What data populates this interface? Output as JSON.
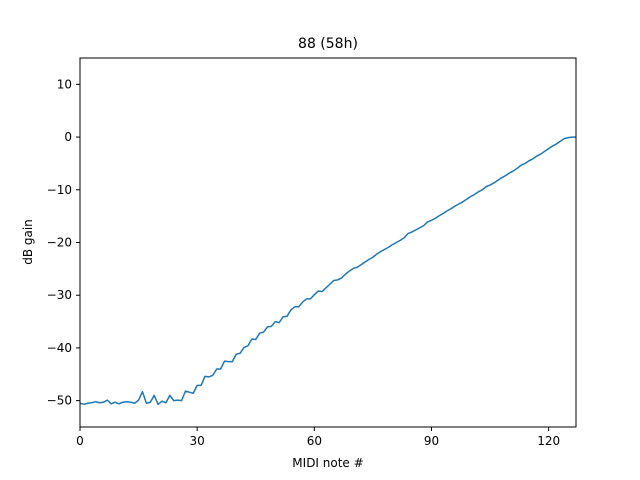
{
  "chart_data": {
    "type": "line",
    "title": "88 (58h)",
    "xlabel": "MIDI note #",
    "ylabel": "dB gain",
    "xlim": [
      0,
      127
    ],
    "ylim": [
      -55,
      15
    ],
    "xticks": [
      0,
      30,
      60,
      90,
      120
    ],
    "yticks": [
      10,
      0,
      -10,
      -20,
      -30,
      -40,
      -50
    ],
    "grid": false,
    "legend": "none",
    "colors": {
      "line": "#1f77b4",
      "axes": "#000000"
    },
    "series": [
      {
        "x": [
          0,
          1,
          2,
          3,
          4,
          5,
          6,
          7,
          8,
          9,
          10,
          11,
          12,
          13,
          14,
          15,
          16,
          17,
          18,
          19,
          20,
          21,
          22,
          23,
          24,
          25,
          26,
          27,
          28,
          29,
          30,
          31,
          32,
          33,
          34,
          35,
          36,
          37,
          38,
          39,
          40,
          41,
          42,
          43,
          44,
          45,
          46,
          47,
          48,
          49,
          50,
          51,
          52,
          53,
          54,
          55,
          56,
          57,
          58,
          59,
          60,
          61,
          62,
          63,
          64,
          65,
          66,
          67,
          68,
          69,
          70,
          71,
          72,
          73,
          74,
          75,
          76,
          77,
          78,
          79,
          80,
          81,
          82,
          83,
          84,
          85,
          86,
          87,
          88,
          89,
          90,
          91,
          92,
          93,
          94,
          95,
          96,
          97,
          98,
          99,
          100,
          101,
          102,
          103,
          104,
          105,
          106,
          107,
          108,
          109,
          110,
          111,
          112,
          113,
          114,
          115,
          116,
          117,
          118,
          119,
          120,
          121,
          122,
          123,
          124,
          125,
          126,
          127
        ],
        "y": [
          -50.5,
          -50.7,
          -50.5,
          -50.4,
          -50.2,
          -50.4,
          -50.3,
          -49.9,
          -50.6,
          -50.3,
          -50.6,
          -50.3,
          -50.2,
          -50.3,
          -50.5,
          -49.9,
          -48.3,
          -50.5,
          -50.3,
          -49.0,
          -50.7,
          -50.1,
          -50.4,
          -49.0,
          -50.0,
          -49.9,
          -50.0,
          -48.2,
          -48.4,
          -48.6,
          -47.1,
          -47.1,
          -45.4,
          -45.5,
          -45.2,
          -44.0,
          -44.0,
          -42.5,
          -42.6,
          -42.6,
          -41.2,
          -41.0,
          -39.9,
          -39.6,
          -38.3,
          -38.4,
          -37.2,
          -37.0,
          -36.0,
          -35.9,
          -35.0,
          -35.2,
          -34.1,
          -34.0,
          -32.8,
          -32.2,
          -32.2,
          -31.3,
          -30.7,
          -30.7,
          -29.9,
          -29.2,
          -29.3,
          -28.6,
          -27.9,
          -27.2,
          -27.1,
          -26.7,
          -26.0,
          -25.4,
          -24.9,
          -24.7,
          -24.2,
          -23.7,
          -23.2,
          -22.8,
          -22.2,
          -21.7,
          -21.3,
          -20.9,
          -20.4,
          -20.0,
          -19.6,
          -19.1,
          -18.3,
          -18.0,
          -17.6,
          -17.2,
          -16.8,
          -16.1,
          -15.8,
          -15.4,
          -14.9,
          -14.5,
          -14.0,
          -13.6,
          -13.1,
          -12.7,
          -12.3,
          -11.8,
          -11.3,
          -10.9,
          -10.4,
          -10.0,
          -9.4,
          -9.1,
          -8.7,
          -8.2,
          -7.7,
          -7.3,
          -6.8,
          -6.4,
          -5.9,
          -5.3,
          -5.0,
          -4.5,
          -4.1,
          -3.6,
          -3.2,
          -2.7,
          -2.2,
          -1.7,
          -1.3,
          -0.8,
          -0.3,
          -0.1,
          0.0,
          0.0
        ]
      }
    ]
  }
}
